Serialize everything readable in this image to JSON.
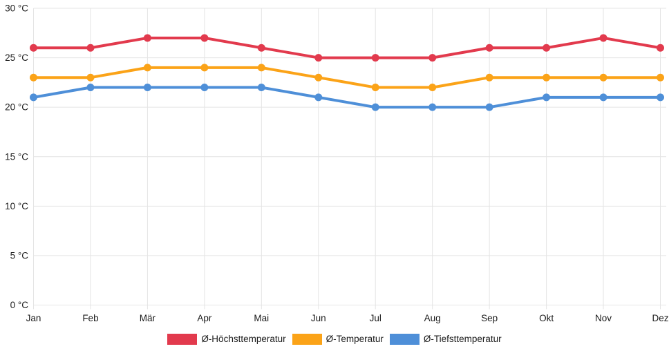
{
  "chart_data": {
    "type": "line",
    "title": "",
    "categories": [
      "Jan",
      "Feb",
      "Mär",
      "Apr",
      "Mai",
      "Jun",
      "Jul",
      "Aug",
      "Sep",
      "Okt",
      "Nov",
      "Dez"
    ],
    "series": [
      {
        "name": "Ø-Höchsttemperatur",
        "color": "#e23a4d",
        "values": [
          26,
          26,
          27,
          27,
          26,
          25,
          25,
          25,
          26,
          26,
          27,
          26
        ]
      },
      {
        "name": "Ø-Temperatur",
        "color": "#fba318",
        "values": [
          23,
          23,
          24,
          24,
          24,
          23,
          22,
          22,
          23,
          23,
          23,
          23
        ]
      },
      {
        "name": "Ø-Tiefsttemperatur",
        "color": "#4e8fd8",
        "values": [
          21,
          22,
          22,
          22,
          22,
          21,
          20,
          20,
          20,
          21,
          21,
          21
        ]
      }
    ],
    "unit": "°C",
    "y_axis": {
      "min": 0,
      "max": 30,
      "tick_step": 5,
      "tick_values": [
        0,
        5,
        10,
        15,
        20,
        25,
        30
      ],
      "tick_labels": [
        "0 °C",
        "5 °C",
        "10 °C",
        "15 °C",
        "20 °C",
        "25 °C",
        "30 °C"
      ]
    },
    "grid": true,
    "legend_position": "bottom",
    "colors": {
      "grid": "#e4e4e4",
      "axis_text": "#1a1a1a",
      "background": "#ffffff"
    }
  }
}
